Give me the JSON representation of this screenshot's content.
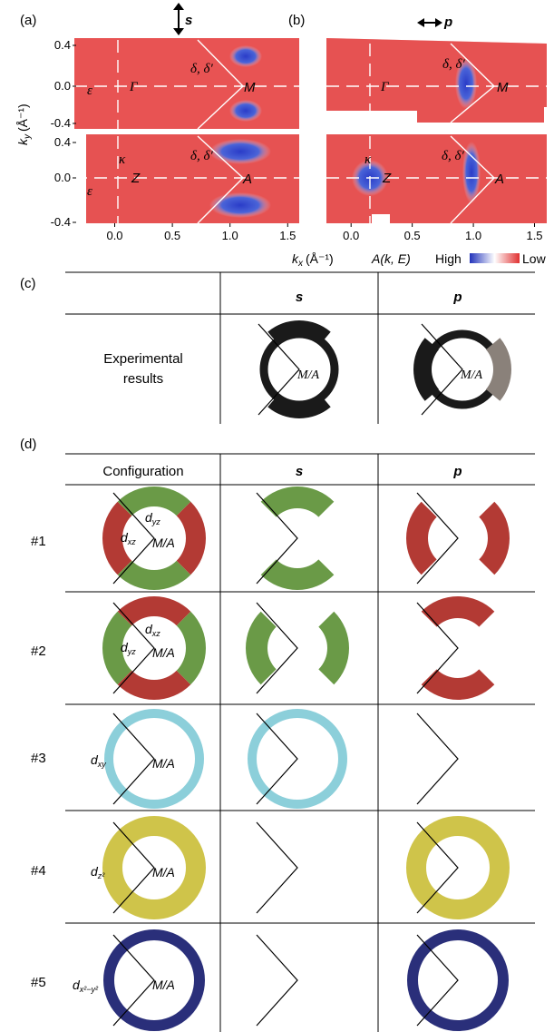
{
  "panels": {
    "a_label": "(a)",
    "b_label": "(b)",
    "c_label": "(c)",
    "d_label": "(d)"
  },
  "polarization": {
    "s": "s",
    "p": "p"
  },
  "arpes": {
    "ky_label": "k",
    "ky_sub": "y",
    "ky_unit": "(Å⁻¹)",
    "kx_label": "k",
    "kx_sub": "x",
    "kx_unit": "(Å⁻¹)",
    "ky_ticks": [
      "0.4",
      "0.0",
      "-0.4"
    ],
    "kx_ticks": [
      "0.0",
      "0.5",
      "1.0",
      "1.5"
    ],
    "kx_tick_values": [
      0.0,
      0.5,
      1.0,
      1.5
    ],
    "kx_range": [
      -0.35,
      1.6
    ],
    "ky_range": [
      -0.4,
      0.4
    ],
    "pts": {
      "gamma": "Γ",
      "M": "M",
      "Z": "Z",
      "A": "A",
      "eps": "ε",
      "kappa": "κ",
      "delta": "δ, δ′"
    },
    "colorbar": {
      "label": "A(k, E)",
      "high": "High",
      "low": "Low",
      "colors": [
        "#2233bb",
        "#ffffff",
        "#e03030"
      ]
    }
  },
  "table_c": {
    "header_s": "s",
    "header_p": "p",
    "row_label_1": "Experimental",
    "row_label_2": "results",
    "center": "M/A"
  },
  "table_d": {
    "config_header": "Configuration",
    "header_s": "s",
    "header_p": "p",
    "center": "M/A",
    "rows": [
      {
        "id": "#1",
        "o1": "d",
        "o1_sub": "yz",
        "o2": "d",
        "o2_sub": "xz"
      },
      {
        "id": "#2",
        "o1": "d",
        "o1_sub": "xz",
        "o2": "d",
        "o2_sub": "yz"
      },
      {
        "id": "#3",
        "o1": "d",
        "o1_sub": "xy"
      },
      {
        "id": "#4",
        "o1": "d",
        "o1_sub": "z²"
      },
      {
        "id": "#5",
        "o1": "d",
        "o1_sub": "x²−y²"
      }
    ],
    "colors": {
      "green": "#6a9a47",
      "red": "#b33a34",
      "cyan": "#8ccfda",
      "yellow": "#cfc44a",
      "navy": "#2a2f7a",
      "black": "#1a1a1a",
      "grey": "#8a817a"
    }
  }
}
